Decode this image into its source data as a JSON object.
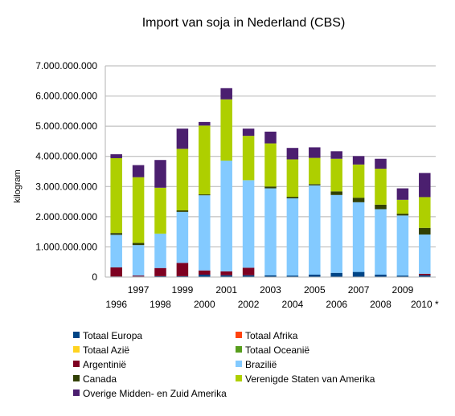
{
  "chart_data": {
    "type": "bar",
    "stacked": true,
    "title": "Import van soja in Nederland (CBS)",
    "xlabel": "",
    "ylabel": "kilogram",
    "ylim": [
      0,
      7000000000
    ],
    "yticks": [
      0,
      1000000000,
      2000000000,
      3000000000,
      4000000000,
      5000000000,
      6000000000,
      7000000000
    ],
    "ytick_labels": [
      "0",
      "1.000.000.000",
      "2.000.000.000",
      "3.000.000.000",
      "4.000.000.000",
      "5.000.000.000",
      "6.000.000.000",
      "7.000.000.000"
    ],
    "grid": true,
    "legend_position": "bottom",
    "categories": [
      "1996",
      "1997",
      "1998",
      "1999",
      "2000",
      "2001",
      "2002",
      "2003",
      "2004",
      "2005",
      "2006",
      "2007",
      "2008",
      "2009",
      "2010 *"
    ],
    "series": [
      {
        "name": "Totaal Europa",
        "color": "#004586",
        "values": [
          20000000,
          20000000,
          30000000,
          30000000,
          80000000,
          60000000,
          60000000,
          60000000,
          50000000,
          80000000,
          140000000,
          170000000,
          80000000,
          50000000,
          60000000
        ]
      },
      {
        "name": "Totaal Afrika",
        "color": "#ff420e",
        "values": [
          0,
          0,
          0,
          0,
          0,
          0,
          0,
          0,
          0,
          0,
          0,
          0,
          0,
          0,
          0
        ]
      },
      {
        "name": "Totaal Azië",
        "color": "#ffd320",
        "values": [
          0,
          0,
          0,
          0,
          0,
          0,
          0,
          0,
          0,
          0,
          0,
          0,
          0,
          0,
          0
        ]
      },
      {
        "name": "Totaal Oceanië",
        "color": "#579d1c",
        "values": [
          0,
          0,
          0,
          0,
          0,
          0,
          0,
          0,
          0,
          0,
          0,
          0,
          0,
          0,
          0
        ]
      },
      {
        "name": "Argentinië",
        "color": "#7e0021",
        "values": [
          300000000,
          30000000,
          270000000,
          440000000,
          140000000,
          130000000,
          250000000,
          0,
          0,
          0,
          0,
          0,
          0,
          0,
          50000000
        ]
      },
      {
        "name": "Brazilië",
        "color": "#83caff",
        "values": [
          1080000000,
          1010000000,
          1140000000,
          1690000000,
          2490000000,
          3670000000,
          2900000000,
          2880000000,
          2560000000,
          2960000000,
          2580000000,
          2310000000,
          2170000000,
          1990000000,
          1300000000
        ]
      },
      {
        "name": "Canada",
        "color": "#314004",
        "values": [
          60000000,
          70000000,
          0,
          50000000,
          30000000,
          0,
          0,
          60000000,
          50000000,
          40000000,
          120000000,
          150000000,
          150000000,
          60000000,
          220000000
        ]
      },
      {
        "name": "Verenigde Staten van Amerika",
        "color": "#aecf00",
        "values": [
          2480000000,
          2180000000,
          1520000000,
          2040000000,
          2280000000,
          2030000000,
          1470000000,
          1430000000,
          1240000000,
          870000000,
          1080000000,
          1100000000,
          1190000000,
          460000000,
          1020000000
        ]
      },
      {
        "name": "Overige Midden- en Zuid Amerika",
        "color": "#4b1f6f",
        "values": [
          130000000,
          400000000,
          920000000,
          670000000,
          120000000,
          370000000,
          240000000,
          390000000,
          380000000,
          350000000,
          250000000,
          280000000,
          330000000,
          380000000,
          800000000
        ]
      }
    ]
  }
}
